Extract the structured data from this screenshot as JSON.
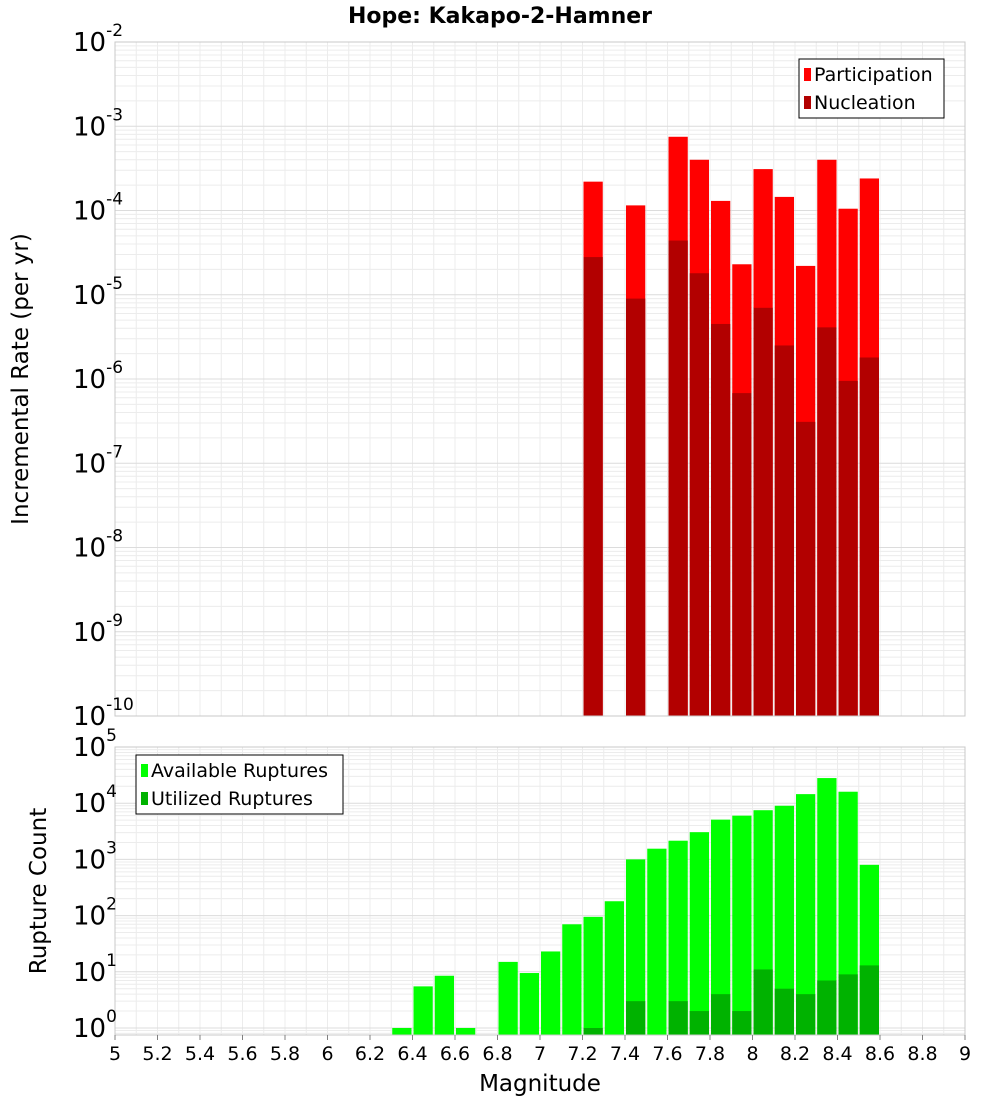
{
  "chart_data": [
    {
      "type": "bar",
      "title": "Hope: Kakapo-2-Hamner",
      "ylabel": "Incremental Rate (per yr)",
      "xlabel": "",
      "yscale": "log",
      "ylim": [
        1e-10,
        0.01
      ],
      "xlim": [
        5,
        9
      ],
      "bin_width": 0.1,
      "legend_position": "top-right",
      "grid": true,
      "x": [
        7.25,
        7.45,
        7.65,
        7.75,
        7.85,
        7.95,
        8.05,
        8.15,
        8.25,
        8.35,
        8.45,
        8.55
      ],
      "series": [
        {
          "name": "Participation",
          "color": "#ff0000",
          "values": [
            0.00022,
            0.000115,
            0.00075,
            0.0004,
            0.00013,
            2.3e-05,
            0.00031,
            0.000145,
            2.2e-05,
            0.0004,
            0.000105,
            0.00024
          ]
        },
        {
          "name": "Nucleation",
          "color": "#b20000",
          "values": [
            2.8e-05,
            9e-06,
            4.4e-05,
            1.8e-05,
            4.5e-06,
            6.8e-07,
            7e-06,
            2.5e-06,
            3.1e-07,
            4.1e-06,
            9.5e-07,
            1.8e-06
          ]
        }
      ],
      "ytick_labels": [
        {
          "base": "10",
          "exp": "-10"
        },
        {
          "base": "10",
          "exp": "-9"
        },
        {
          "base": "10",
          "exp": "-8"
        },
        {
          "base": "10",
          "exp": "-7"
        },
        {
          "base": "10",
          "exp": "-6"
        },
        {
          "base": "10",
          "exp": "-5"
        },
        {
          "base": "10",
          "exp": "-4"
        },
        {
          "base": "10",
          "exp": "-3"
        },
        {
          "base": "10",
          "exp": "-2"
        }
      ]
    },
    {
      "type": "bar",
      "title": "",
      "ylabel": "Rupture Count",
      "xlabel": "Magnitude",
      "yscale": "log",
      "ylim": [
        0.75,
        100000.0
      ],
      "xlim": [
        5,
        9
      ],
      "bin_width": 0.1,
      "legend_position": "top-left",
      "grid": true,
      "x": [
        6.35,
        6.45,
        6.55,
        6.65,
        6.85,
        6.95,
        7.05,
        7.15,
        7.25,
        7.35,
        7.45,
        7.55,
        7.65,
        7.75,
        7.85,
        7.95,
        8.05,
        8.15,
        8.25,
        8.35,
        8.45,
        8.55
      ],
      "series": [
        {
          "name": "Available Ruptures",
          "color": "#00ff00",
          "values": [
            1,
            5.5,
            8.5,
            1,
            15,
            9.5,
            23,
            70,
            95,
            180,
            1000,
            1550,
            2150,
            3050,
            5100,
            6000,
            7500,
            9000,
            14500,
            28000,
            16000,
            800
          ]
        },
        {
          "name": "Utilized Ruptures",
          "color": "#00b200",
          "values": [
            0,
            0,
            0,
            0,
            0,
            0,
            0,
            0,
            1,
            0,
            3,
            0,
            3,
            2,
            4,
            2,
            11,
            5,
            4,
            7,
            9,
            13
          ]
        }
      ],
      "xtick_labels": [
        "5",
        "5.2",
        "5.4",
        "5.6",
        "5.8",
        "6",
        "6.2",
        "6.4",
        "6.6",
        "6.8",
        "7",
        "7.2",
        "7.4",
        "7.6",
        "7.8",
        "8",
        "8.2",
        "8.4",
        "8.6",
        "8.8",
        "9"
      ],
      "ytick_labels": [
        {
          "base": "10",
          "exp": "0"
        },
        {
          "base": "10",
          "exp": "1"
        },
        {
          "base": "10",
          "exp": "2"
        },
        {
          "base": "10",
          "exp": "3"
        },
        {
          "base": "10",
          "exp": "4"
        },
        {
          "base": "10",
          "exp": "5"
        }
      ]
    }
  ]
}
